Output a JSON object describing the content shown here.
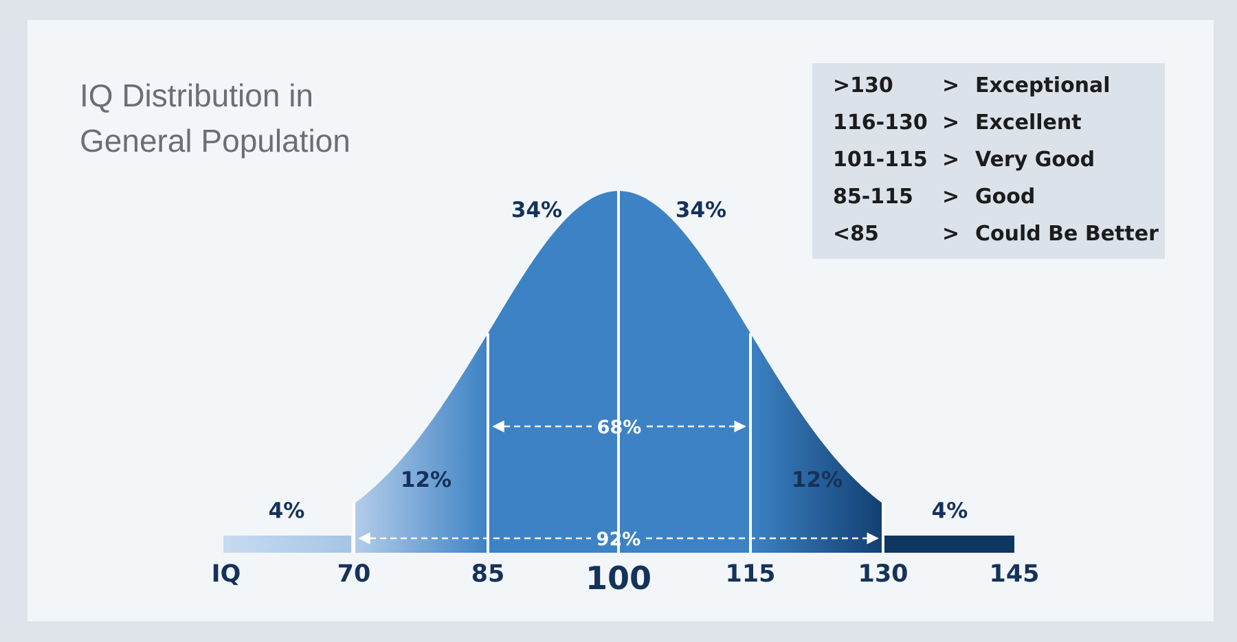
{
  "chart_data": {
    "type": "area",
    "title": "IQ Distribution in General Population",
    "title_lines": [
      "IQ Distribution in",
      "General Population"
    ],
    "xlabel": "IQ",
    "x_ticks": [
      70,
      85,
      100,
      115,
      130,
      145
    ],
    "x_tick_labels": [
      "70",
      "85",
      "100",
      "115",
      "130",
      "145"
    ],
    "xlim": [
      60,
      145
    ],
    "segments": [
      {
        "from": 60,
        "to": 70,
        "label": "4%",
        "value": 4,
        "color": "#b6cfea"
      },
      {
        "from": 70,
        "to": 85,
        "label": "12%",
        "value": 12,
        "color": "#5f9bd6"
      },
      {
        "from": 85,
        "to": 100,
        "label": "34%",
        "value": 34,
        "color": "#3d82c4"
      },
      {
        "from": 100,
        "to": 115,
        "label": "34%",
        "value": 34,
        "color": "#3d82c4"
      },
      {
        "from": 115,
        "to": 130,
        "label": "12%",
        "value": 12,
        "color": "#2a62a0"
      },
      {
        "from": 130,
        "to": 145,
        "label": "4%",
        "value": 4,
        "color": "#0d3661"
      }
    ],
    "annotations": [
      {
        "label": "68%",
        "from": 85,
        "to": 115
      },
      {
        "label": "92%",
        "from": 70,
        "to": 130
      }
    ],
    "curve": {
      "mean": 100,
      "sd": 15
    }
  },
  "legend": {
    "rows": [
      {
        "range": ">130",
        "arrow": ">",
        "label": "Exceptional"
      },
      {
        "range": "116-130",
        "arrow": ">",
        "label": "Excellent"
      },
      {
        "range": "101-115",
        "arrow": ">",
        "label": "Very Good"
      },
      {
        "range": "85-115",
        "arrow": ">",
        "label": "Good"
      },
      {
        "range": "<85",
        "arrow": ">",
        "label": "Could Be Better"
      }
    ]
  },
  "colors": {
    "label_dark": "#15325a",
    "main_blue": "#3d82c4",
    "deep_navy": "#0d3661"
  }
}
